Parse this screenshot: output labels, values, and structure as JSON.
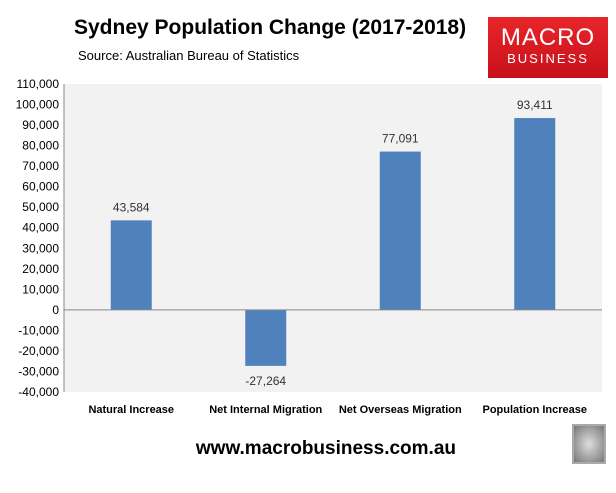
{
  "chart_data": {
    "type": "bar",
    "title": "Sydney Population Change (2017-2018)",
    "subtitle": "Source: Australian Bureau of Statistics",
    "categories": [
      "Natural Increase",
      "Net Internal Migration",
      "Net Overseas Migration",
      "Population Increase"
    ],
    "values": [
      43584,
      -27264,
      77091,
      93411
    ],
    "value_labels": [
      "43,584",
      "-27,264",
      "77,091",
      "93,411"
    ],
    "ylim": [
      -40000,
      110000
    ],
    "yticks": [
      110000,
      100000,
      90000,
      80000,
      70000,
      60000,
      50000,
      40000,
      30000,
      20000,
      10000,
      0,
      -10000,
      -20000,
      -30000,
      -40000
    ],
    "ytick_labels": [
      "110,000",
      "100,000",
      "90,000",
      "80,000",
      "70,000",
      "60,000",
      "50,000",
      "40,000",
      "30,000",
      "20,000",
      "10,000",
      "0",
      "-10,000",
      "-20,000",
      "-30,000",
      "-40,000"
    ],
    "grid": false,
    "bar_color": "#4f81bd",
    "plot_background": "#f2f2f2"
  },
  "logo": {
    "line1": "MACRO",
    "line2": "BUSINESS",
    "color": "#e21f26"
  },
  "footer": "www.macrobusiness.com.au",
  "wolf_icon": "wolf-logo"
}
